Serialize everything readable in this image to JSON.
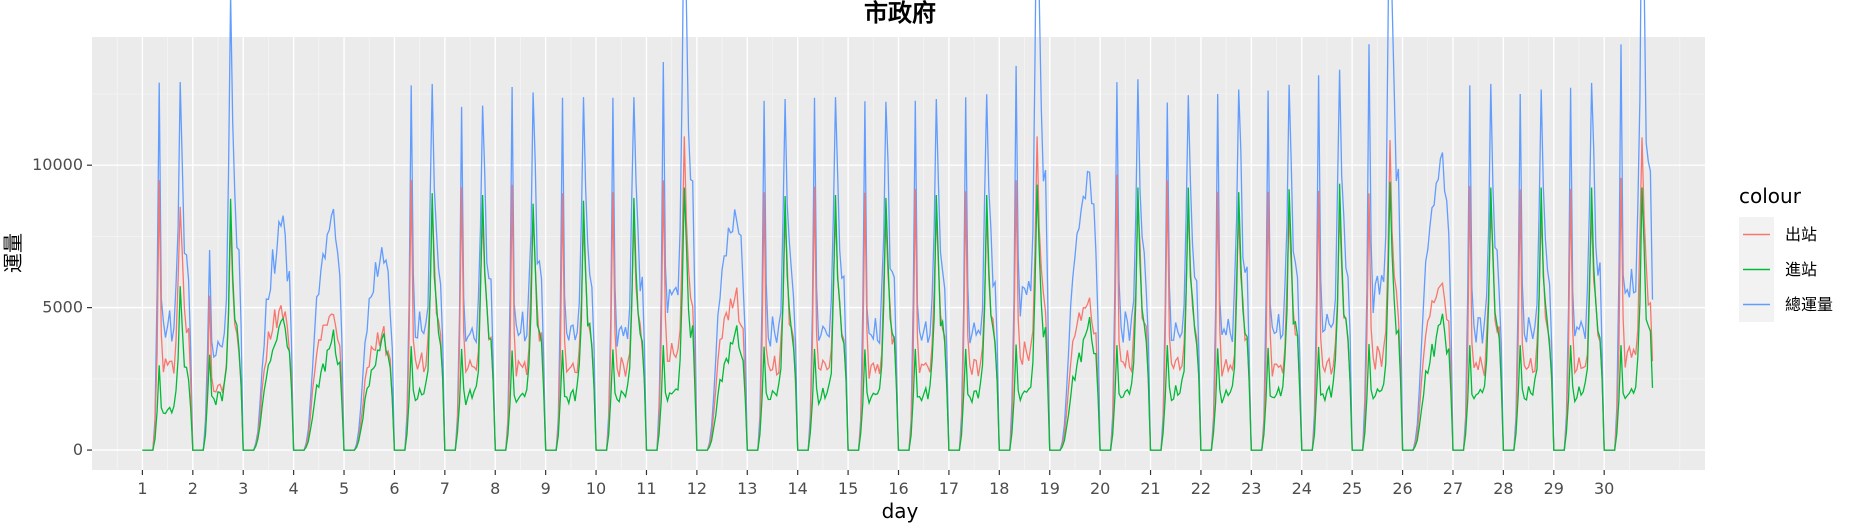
{
  "chart_data": {
    "type": "line",
    "title": "市政府",
    "xlabel": "day",
    "ylabel": "運量",
    "x_ticks": [
      "1",
      "2",
      "3",
      "4",
      "5",
      "6",
      "7",
      "8",
      "9",
      "10",
      "11",
      "12",
      "13",
      "14",
      "15",
      "16",
      "17",
      "18",
      "19",
      "20",
      "21",
      "22",
      "23",
      "24",
      "25",
      "26",
      "27",
      "28",
      "29",
      "30"
    ],
    "y_ticks": [
      0,
      5000,
      10000
    ],
    "xlim": [
      0.0,
      32.0
    ],
    "ylim": [
      -700,
      14500
    ],
    "grid": true,
    "legend": {
      "title": "colour",
      "position": "right"
    },
    "day_types": [
      "w",
      "w",
      "s",
      "s",
      "s",
      "w",
      "w",
      "w",
      "w",
      "w",
      "w",
      "s",
      "w",
      "w",
      "w",
      "w",
      "w",
      "w",
      "s",
      "w",
      "w",
      "w",
      "w",
      "w",
      "w",
      "s",
      "w",
      "w",
      "w",
      "w"
    ],
    "series": [
      {
        "name": "出站",
        "color": "#F8766D",
        "peak_am": [
          9000,
          4500,
          2700,
          2900,
          2400,
          9000,
          8800,
          8900,
          8600,
          8600,
          8500,
          3200,
          8600,
          8800,
          8600,
          8700,
          8600,
          8500,
          3300,
          9200,
          9000,
          8600,
          8600,
          8600,
          8000,
          3400,
          8800,
          8700,
          8700,
          8600
        ],
        "peak_pm": [
          2600,
          5100,
          2900,
          2400,
          2100,
          2700,
          2400,
          2300,
          2300,
          2500,
          5400,
          2700,
          2500,
          2500,
          2400,
          2600,
          2700,
          5400,
          2400,
          2600,
          2600,
          2600,
          2600,
          2800,
          5600,
          3000,
          2600,
          2500,
          2600,
          5300
        ]
      },
      {
        "name": "進站",
        "color": "#00BA38",
        "peak_am": [
          2200,
          2000,
          1500,
          1200,
          1100,
          2300,
          2200,
          2200,
          2200,
          2200,
          2300,
          1400,
          2300,
          2200,
          2200,
          2200,
          2200,
          2300,
          1300,
          2300,
          2300,
          2200,
          2200,
          2200,
          2300,
          1500,
          2300,
          2300,
          2300,
          2300
        ],
        "peak_pm": [
          4300,
          7500,
          3400,
          2900,
          3100,
          7500,
          7500,
          7200,
          7300,
          7400,
          7700,
          3000,
          7400,
          7500,
          7400,
          7500,
          7500,
          7800,
          3300,
          7700,
          7700,
          7600,
          7700,
          7900,
          7900,
          3300,
          7700,
          7700,
          7700,
          7700
        ]
      },
      {
        "name": "總運量",
        "color": "#619CFF",
        "peak_am": [
          12000,
          4700,
          3400,
          3600,
          3200,
          11900,
          11200,
          11900,
          11500,
          11500,
          11300,
          4300,
          11400,
          11500,
          11400,
          11400,
          11500,
          11000,
          4300,
          12000,
          11300,
          11600,
          11700,
          12200,
          11800,
          4600,
          11900,
          11600,
          11800,
          11900
        ],
        "peak_pm": [
          5000,
          12900,
          5200,
          5400,
          4600,
          5000,
          4700,
          4700,
          4800,
          4800,
          12900,
          5000,
          4800,
          4800,
          4700,
          4800,
          4900,
          13800,
          6400,
          5100,
          5000,
          5000,
          5100,
          5300,
          13600,
          6600,
          5000,
          5000,
          5100,
          13000
        ]
      }
    ]
  }
}
